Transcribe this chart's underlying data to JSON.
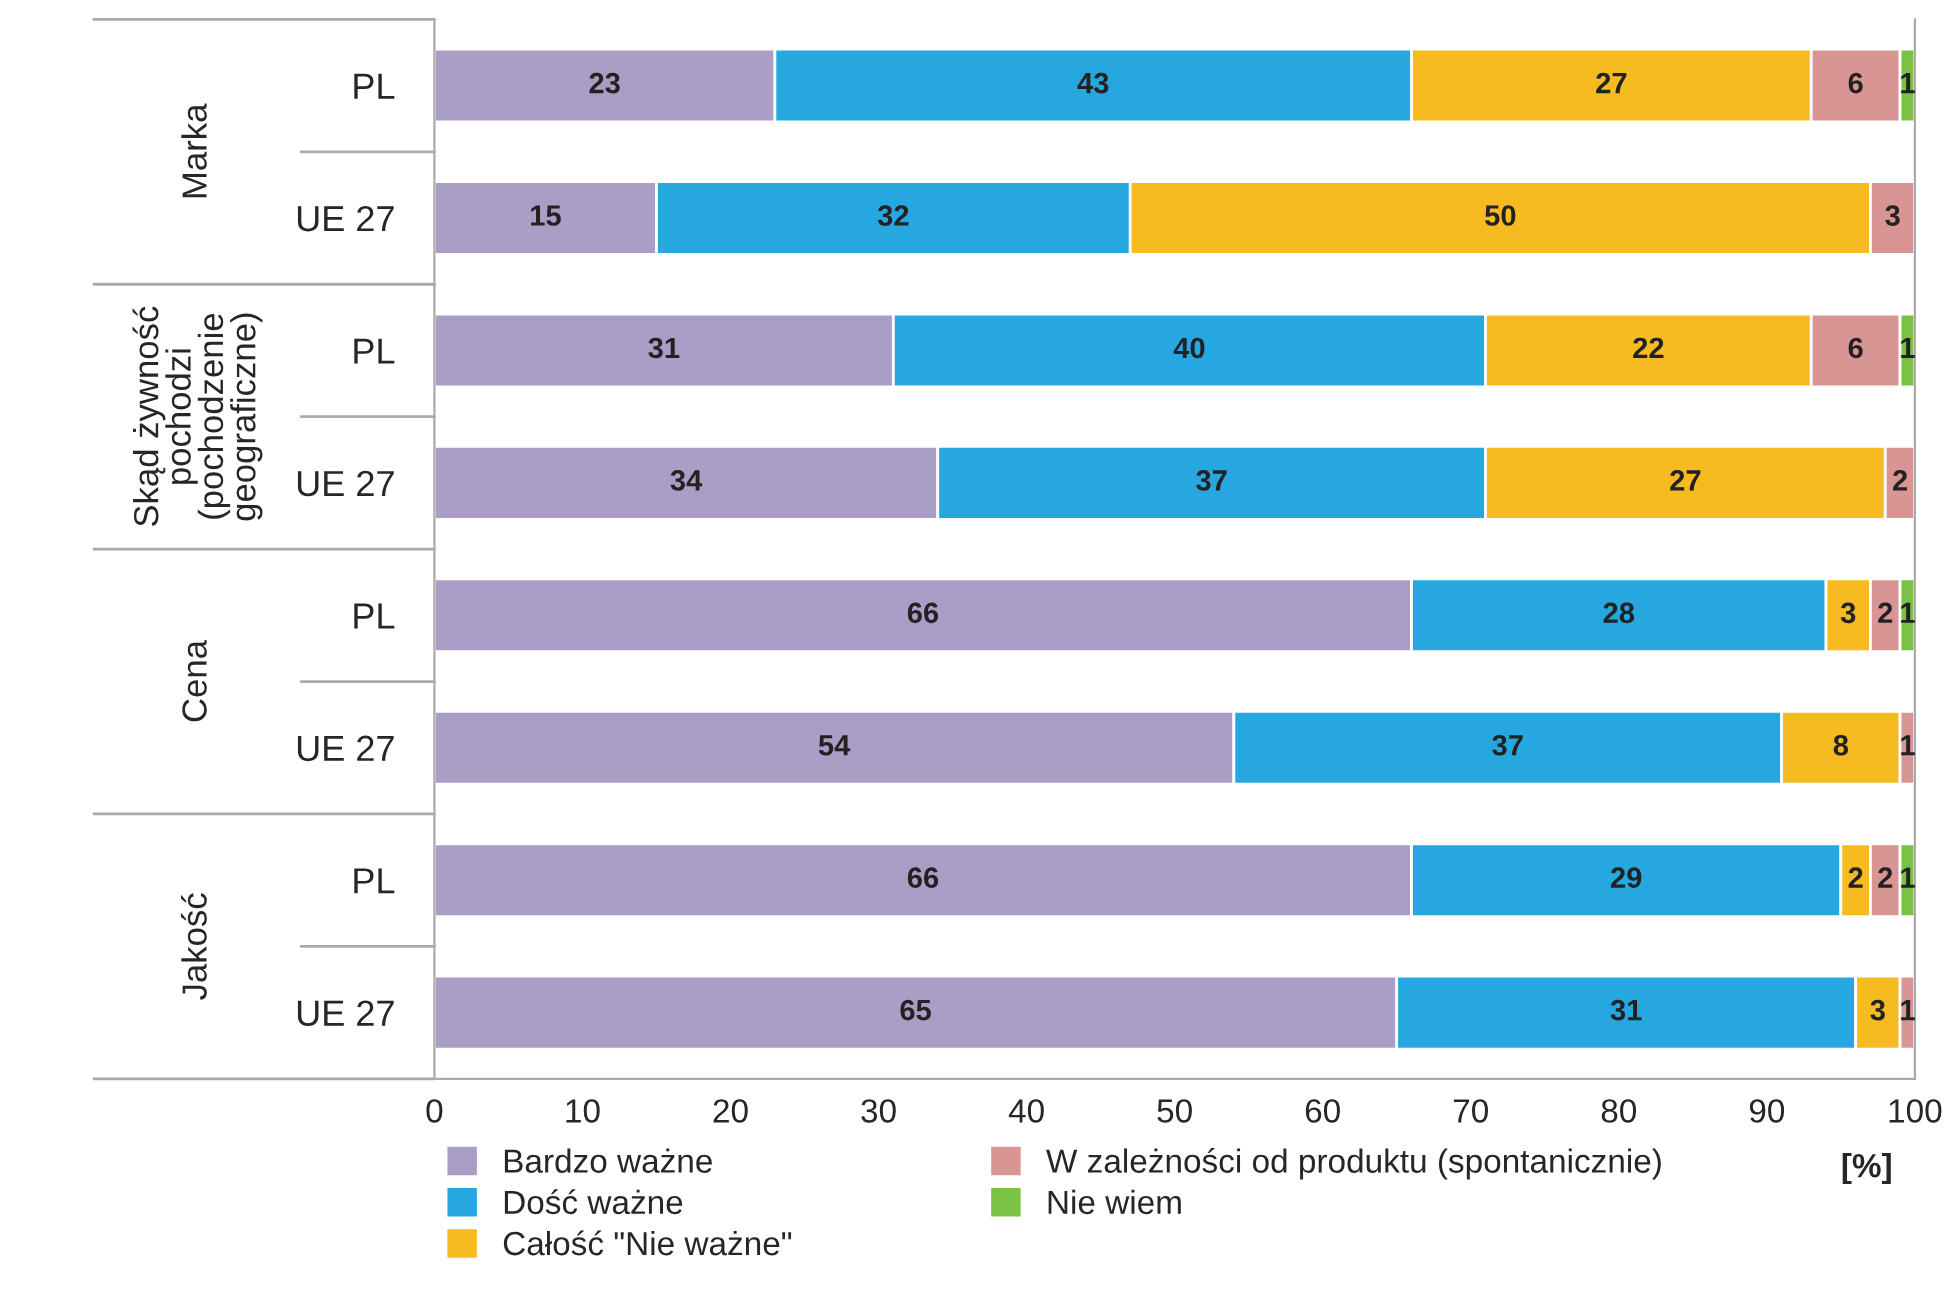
{
  "chart_data": {
    "type": "bar",
    "orientation": "horizontal",
    "stacked": true,
    "categories": [
      "PL",
      "UE 27",
      "PL",
      "UE 27",
      "PL",
      "UE 27",
      "PL",
      "UE 27"
    ],
    "series": [
      {
        "name": "Bardzo ważne",
        "color": "#ab9ec6",
        "values": [
          23,
          15,
          31,
          34,
          66,
          54,
          66,
          65
        ]
      },
      {
        "name": "Dość ważne",
        "color": "#27a7e0",
        "values": [
          43,
          32,
          40,
          37,
          28,
          37,
          29,
          31
        ]
      },
      {
        "name": "Całość \"Nie ważne\"",
        "color": "#f6bb20",
        "values": [
          27,
          50,
          22,
          27,
          3,
          8,
          2,
          3
        ]
      },
      {
        "name": "W zależności od produktu (spontanicznie)",
        "color": "#d99594",
        "values": [
          6,
          3,
          6,
          2,
          2,
          1,
          2,
          1
        ]
      },
      {
        "name": "Nie wiem",
        "color": "#7bc143",
        "values": [
          1,
          null,
          1,
          null,
          1,
          null,
          1,
          null
        ]
      }
    ],
    "annotations": [
      "Marka",
      "Skąd żywność\npochodzi\n(pochodzenie\ngeograficzne)",
      "Cena",
      "Jakość"
    ],
    "xlabel": "[%]",
    "xlim": [
      0,
      100
    ],
    "xticks": [
      0,
      10,
      20,
      30,
      40,
      50,
      60,
      70,
      80,
      90,
      100
    ],
    "data_labels": true,
    "grid": false,
    "legend": "bottom"
  }
}
